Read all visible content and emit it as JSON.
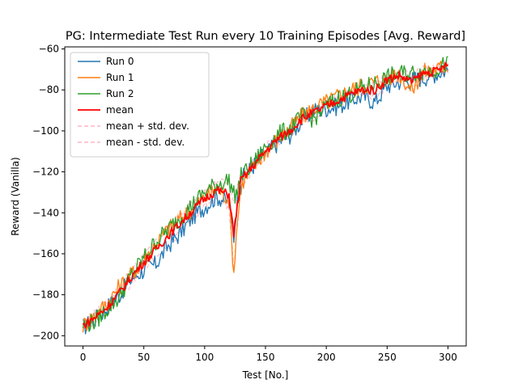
{
  "chart_data": {
    "type": "line",
    "title": "PG: Intermediate Test Run every 10 Training Episodes [Avg. Reward]",
    "xlabel": "Test [No.]",
    "ylabel": "Reward (Vanilla)",
    "xlim": [
      -15,
      315
    ],
    "ylim": [
      -205,
      -59
    ],
    "xticks": [
      0,
      50,
      100,
      150,
      200,
      250,
      300
    ],
    "yticks": [
      -200,
      -180,
      -160,
      -140,
      -120,
      -100,
      -80,
      -60
    ],
    "xtick_labels": [
      "0",
      "50",
      "100",
      "150",
      "200",
      "250",
      "300"
    ],
    "ytick_labels": [
      "−200",
      "−180",
      "−160",
      "−140",
      "−120",
      "−100",
      "−80",
      "−60"
    ],
    "grid": false,
    "legend_position": "upper-left",
    "x_anchor": [
      0,
      10,
      20,
      30,
      40,
      50,
      60,
      70,
      80,
      90,
      100,
      110,
      120,
      124,
      126,
      130,
      140,
      150,
      160,
      170,
      180,
      190,
      200,
      210,
      220,
      230,
      240,
      250,
      260,
      270,
      280,
      290,
      300
    ],
    "series": [
      {
        "name": "Run 0",
        "color": "#1f77b4",
        "style": "solid",
        "values": [
          -196,
          -192,
          -186,
          -180,
          -172,
          -168,
          -165,
          -156,
          -150,
          -142,
          -137,
          -132,
          -135,
          -152,
          -138,
          -124,
          -117,
          -111,
          -106,
          -102,
          -95,
          -90,
          -89,
          -88,
          -85,
          -83,
          -86,
          -78,
          -76,
          -75,
          -74,
          -72,
          -70
        ]
      },
      {
        "name": "Run 1",
        "color": "#ff7f0e",
        "style": "solid",
        "values": [
          -195,
          -190,
          -184,
          -176,
          -170,
          -163,
          -155,
          -148,
          -143,
          -138,
          -133,
          -128,
          -133,
          -170,
          -150,
          -127,
          -118,
          -110,
          -104,
          -99,
          -93,
          -89,
          -86,
          -83,
          -80,
          -78,
          -76,
          -74,
          -72,
          -80,
          -71,
          -70,
          -68
        ]
      },
      {
        "name": "Run 2",
        "color": "#2ca02c",
        "style": "solid",
        "values": [
          -195,
          -193,
          -187,
          -181,
          -170,
          -162,
          -154,
          -148,
          -142,
          -136,
          -130,
          -126,
          -124,
          -131,
          -131,
          -122,
          -116,
          -108,
          -102,
          -99,
          -93,
          -94,
          -88,
          -84,
          -82,
          -79,
          -77,
          -74,
          -72,
          -72,
          -71,
          -70,
          -67
        ]
      },
      {
        "name": "mean",
        "color": "#ff0000",
        "style": "solid",
        "values": [
          -195,
          -191,
          -186,
          -179,
          -171,
          -164,
          -158,
          -151,
          -145,
          -139,
          -133,
          -129,
          -131,
          -151,
          -140,
          -124,
          -117,
          -110,
          -104,
          -100,
          -94,
          -91,
          -88,
          -85,
          -82,
          -80,
          -80,
          -75,
          -73,
          -76,
          -72,
          -71,
          -68
        ]
      },
      {
        "name": "mean + std. dev.",
        "color": "#ffb6c1",
        "style": "dashed",
        "values": [
          -194,
          -189,
          -183,
          -176,
          -168,
          -161,
          -154,
          -147,
          -141,
          -135,
          -129,
          -125,
          -125,
          -135,
          -128,
          -121,
          -115,
          -108,
          -102,
          -98,
          -92,
          -89,
          -86,
          -83,
          -80,
          -78,
          -76,
          -73,
          -71,
          -71,
          -70,
          -69,
          -66
        ]
      },
      {
        "name": "mean - std. dev.",
        "color": "#ffb6c1",
        "style": "dashed",
        "values": [
          -196,
          -193,
          -189,
          -182,
          -174,
          -167,
          -162,
          -155,
          -149,
          -143,
          -137,
          -133,
          -137,
          -167,
          -152,
          -127,
          -119,
          -112,
          -106,
          -102,
          -96,
          -93,
          -90,
          -87,
          -84,
          -82,
          -84,
          -77,
          -75,
          -81,
          -74,
          -73,
          -70
        ]
      }
    ]
  }
}
